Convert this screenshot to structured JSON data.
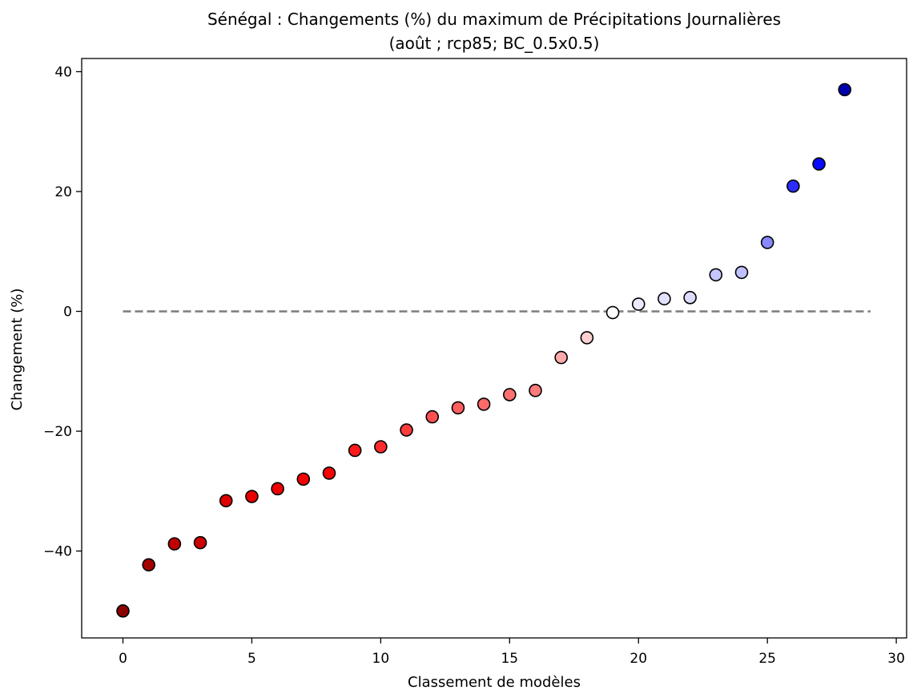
{
  "chart_data": {
    "type": "scatter",
    "title": "Sénégal : Changements (%) du maximum de Précipitations Journalières",
    "subtitle": "(août ; rcp85; BC_0.5x0.5)",
    "xlabel": "Classement de modèles",
    "ylabel": "Changement (%)",
    "xlim": [
      -1.6,
      30.4
    ],
    "ylim": [
      -54.5,
      42.2
    ],
    "xticks": [
      0,
      5,
      10,
      15,
      20,
      25,
      30
    ],
    "yticks": [
      40,
      20,
      0,
      -20,
      -40
    ],
    "xtick_labels": [
      "0",
      "5",
      "10",
      "15",
      "20",
      "25",
      "30"
    ],
    "ytick_labels": [
      "40",
      "20",
      "0",
      "−20",
      "−40"
    ],
    "grid": false,
    "reference_line": {
      "y": 0,
      "x_range": [
        0,
        29
      ],
      "style": "dashed",
      "color": "#808080"
    },
    "points": {
      "x": [
        0,
        1,
        2,
        3,
        4,
        5,
        6,
        7,
        8,
        9,
        10,
        11,
        12,
        13,
        14,
        15,
        16,
        17,
        18,
        19,
        20,
        21,
        22,
        23,
        24,
        25,
        26,
        27,
        28
      ],
      "y": [
        -50.0,
        -42.3,
        -38.8,
        -38.6,
        -31.6,
        -30.9,
        -29.6,
        -28.0,
        -27.0,
        -23.2,
        -22.6,
        -19.8,
        -17.6,
        -16.1,
        -15.5,
        -13.9,
        -13.2,
        -7.7,
        -4.4,
        -0.2,
        1.2,
        2.1,
        2.3,
        6.1,
        6.5,
        11.5,
        20.9,
        24.6,
        37.0
      ],
      "colors": [
        "#8b0000",
        "#a50000",
        "#c00000",
        "#cc0000",
        "#e00000",
        "#e80000",
        "#f00000",
        "#f50000",
        "#fa0000",
        "#ff1a1a",
        "#ff2a2a",
        "#ff3c3c",
        "#ff5050",
        "#ff5e5e",
        "#ff6a6a",
        "#ff7070",
        "#ff7a7a",
        "#ffaaaa",
        "#ffd0d0",
        "#ffffff",
        "#eaeaff",
        "#e2e2ff",
        "#dcdcff",
        "#c6c6ff",
        "#c0c0ff",
        "#8888ff",
        "#2c2cff",
        "#0a0aff",
        "#0000b0"
      ]
    }
  }
}
